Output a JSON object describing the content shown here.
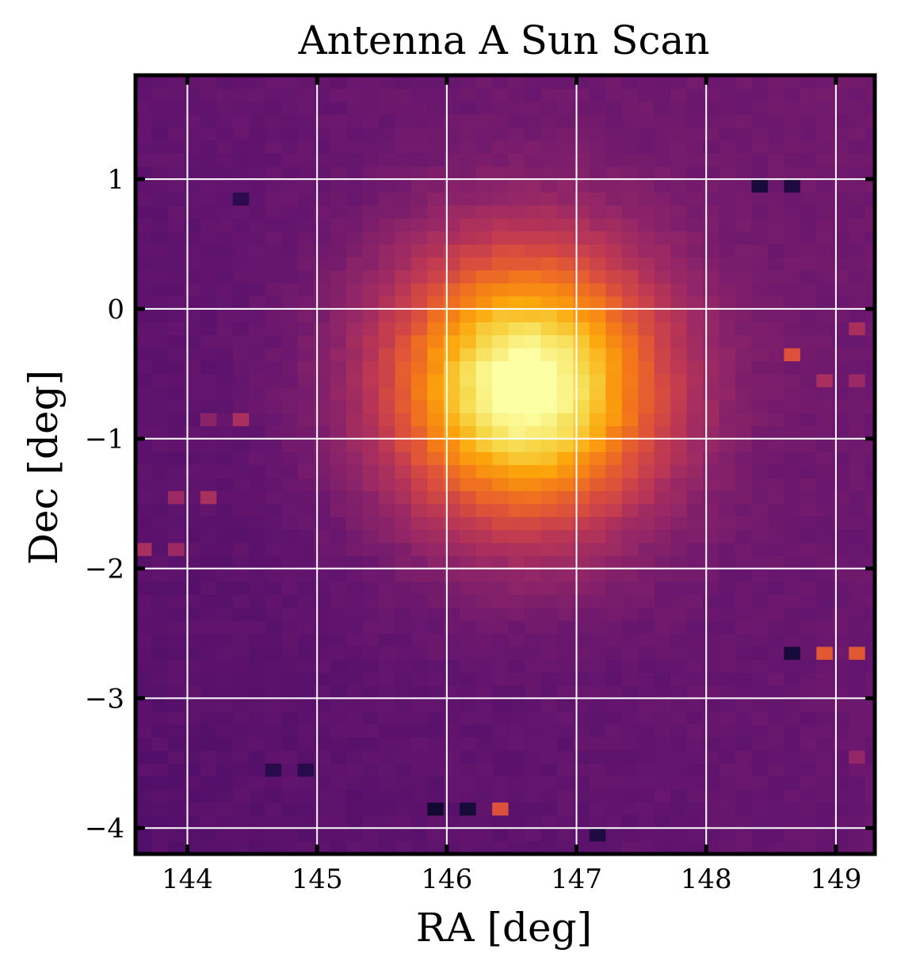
{
  "chart_data": {
    "type": "heatmap",
    "title": "Antenna A Sun Scan",
    "xlabel": "RA [deg]",
    "ylabel": "Dec [deg]",
    "xlim": [
      143.6,
      149.3
    ],
    "ylim": [
      -4.2,
      1.8
    ],
    "x_ticks": [
      144,
      145,
      146,
      147,
      148,
      149
    ],
    "y_ticks": [
      1,
      0,
      -1,
      -2,
      -3,
      -4
    ],
    "x_tick_labels": [
      "144",
      "145",
      "146",
      "147",
      "148",
      "149"
    ],
    "y_tick_labels": [
      "1",
      "0",
      "−1",
      "−2",
      "−3",
      "−4"
    ],
    "grid": true,
    "colormap": "inferno",
    "colorbar": false,
    "pixel_size_deg": [
      0.125,
      0.1
    ],
    "source_peak": {
      "ra": 146.6,
      "dec": -0.6,
      "sigma_deg": 0.75,
      "relative_amplitude": 1.0
    },
    "background_level": 0.25,
    "background_gradient": "brighter toward upper-right",
    "outlier_pixels": [
      {
        "ra": 146.1,
        "dec": -3.9,
        "value": 0.0
      },
      {
        "ra": 145.95,
        "dec": -3.9,
        "value": 0.08
      },
      {
        "ra": 146.22,
        "dec": -3.9,
        "value": 0.1
      },
      {
        "ra": 146.35,
        "dec": -3.9,
        "value": 0.85
      },
      {
        "ra": 146.47,
        "dec": -3.9,
        "value": 0.6
      },
      {
        "ra": 148.72,
        "dec": -2.7,
        "value": 0.1
      },
      {
        "ra": 148.85,
        "dec": -2.7,
        "value": 0.12
      },
      {
        "ra": 148.97,
        "dec": -2.7,
        "value": 0.62
      },
      {
        "ra": 149.1,
        "dec": -2.7,
        "value": 0.62
      },
      {
        "ra": 148.6,
        "dec": -0.35,
        "value": 0.55
      },
      {
        "ra": 148.72,
        "dec": -0.35,
        "value": 0.6
      },
      {
        "ra": 148.97,
        "dec": -0.6,
        "value": 0.45
      },
      {
        "ra": 149.1,
        "dec": -0.6,
        "value": 0.42
      },
      {
        "ra": 143.72,
        "dec": -1.9,
        "value": 0.45
      },
      {
        "ra": 143.85,
        "dec": -1.9,
        "value": 0.42
      },
      {
        "ra": 143.97,
        "dec": -1.5,
        "value": 0.42
      },
      {
        "ra": 144.1,
        "dec": -1.5,
        "value": 0.45
      },
      {
        "ra": 144.35,
        "dec": -0.85,
        "value": 0.45
      },
      {
        "ra": 144.22,
        "dec": -0.85,
        "value": 0.38
      },
      {
        "ra": 144.35,
        "dec": 0.8,
        "value": 0.12
      },
      {
        "ra": 144.47,
        "dec": 0.8,
        "value": 0.15
      },
      {
        "ra": 148.47,
        "dec": 0.95,
        "value": 0.1
      },
      {
        "ra": 148.6,
        "dec": 0.95,
        "value": 0.12
      },
      {
        "ra": 144.72,
        "dec": -3.55,
        "value": 0.14
      },
      {
        "ra": 144.85,
        "dec": -3.55,
        "value": 0.14
      },
      {
        "ra": 147.1,
        "dec": -4.1,
        "value": 0.12
      },
      {
        "ra": 149.22,
        "dec": -3.45,
        "value": 0.45
      },
      {
        "ra": 149.1,
        "dec": -3.45,
        "value": 0.4
      },
      {
        "ra": 149.22,
        "dec": -0.2,
        "value": 0.45
      }
    ]
  }
}
